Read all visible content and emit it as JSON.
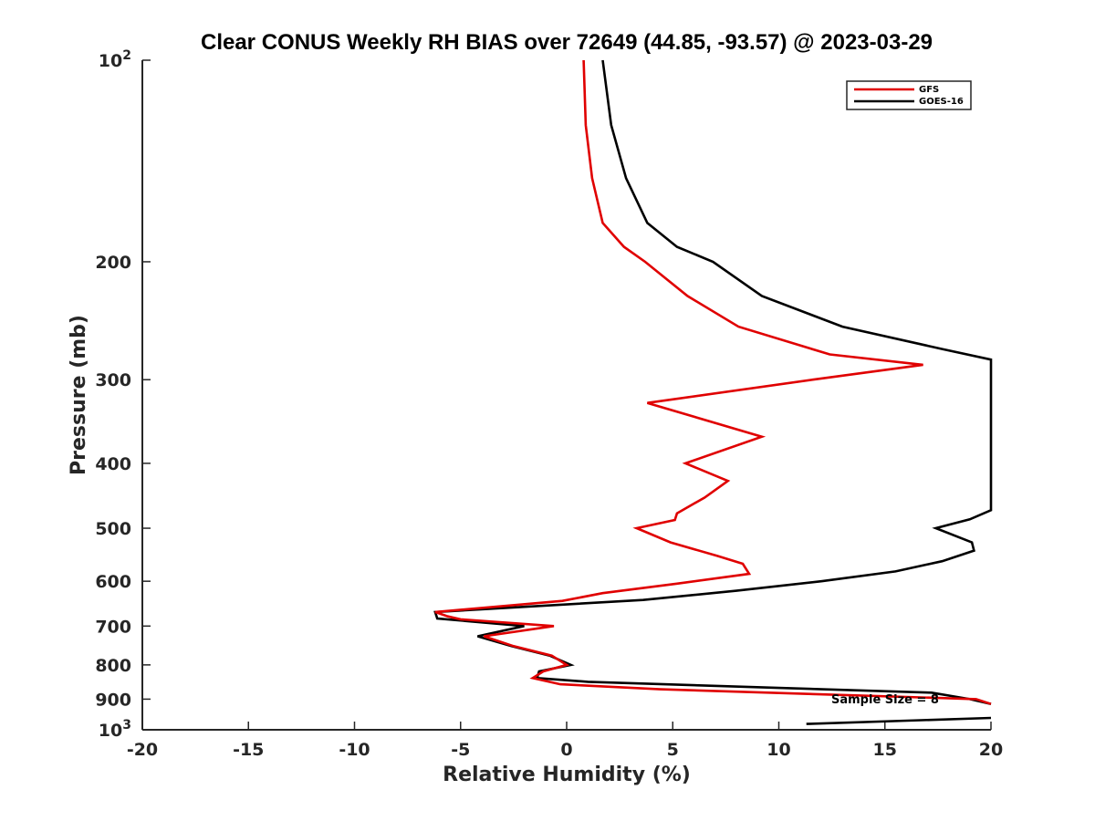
{
  "chart_data": {
    "type": "line",
    "title": "Clear CONUS Weekly RH BIAS over 72649 (44.85, -93.57) @ 2023-03-29",
    "xlabel": "Relative Humidity (%)",
    "ylabel": "Pressure (mb)",
    "xlim": [
      -20,
      20
    ],
    "ylim": [
      100,
      1000
    ],
    "yscale": "log",
    "y_reversed": true,
    "grid": false,
    "legend_position": "top-right",
    "x_ticks": [
      "-20",
      "-15",
      "-10",
      "-5",
      "0",
      "5",
      "10",
      "15",
      "20"
    ],
    "y_ticks": [
      {
        "value": 100,
        "base": "10",
        "exp": "2"
      },
      {
        "value": 200,
        "label": "200"
      },
      {
        "value": 300,
        "label": "300"
      },
      {
        "value": 400,
        "label": "400"
      },
      {
        "value": 500,
        "label": "500"
      },
      {
        "value": 600,
        "label": "600"
      },
      {
        "value": 700,
        "label": "700"
      },
      {
        "value": 800,
        "label": "800"
      },
      {
        "value": 900,
        "label": "900"
      },
      {
        "value": 1000,
        "base": "10",
        "exp": "3"
      }
    ],
    "annotation": "Sample Size = 8",
    "series": [
      {
        "name": "GFS",
        "color": "#e00000",
        "points": [
          [
            0.8,
            100
          ],
          [
            0.9,
            125
          ],
          [
            1.2,
            150
          ],
          [
            1.7,
            175
          ],
          [
            2.7,
            190
          ],
          [
            3.7,
            200
          ],
          [
            5.7,
            225
          ],
          [
            8.1,
            250
          ],
          [
            12.4,
            275
          ],
          [
            16.8,
            285
          ],
          [
            11.6,
            300
          ],
          [
            3.8,
            325
          ],
          [
            9.2,
            365
          ],
          [
            5.6,
            400
          ],
          [
            7.6,
            425
          ],
          [
            6.5,
            450
          ],
          [
            5.2,
            475
          ],
          [
            5.1,
            486
          ],
          [
            3.3,
            500
          ],
          [
            4.9,
            525
          ],
          [
            7.1,
            550
          ],
          [
            8.3,
            565
          ],
          [
            8.6,
            585
          ],
          [
            5.2,
            605
          ],
          [
            1.7,
            625
          ],
          [
            -0.2,
            642
          ],
          [
            -6.2,
            667
          ],
          [
            -5.6,
            677
          ],
          [
            -5.0,
            684
          ],
          [
            -0.6,
            700
          ],
          [
            -3.9,
            725
          ],
          [
            -2.5,
            750
          ],
          [
            -0.7,
            775
          ],
          [
            0.0,
            800
          ],
          [
            -1.1,
            818
          ],
          [
            -1.6,
            837
          ],
          [
            -0.3,
            855
          ],
          [
            4.4,
            870
          ],
          [
            19.3,
            900
          ],
          [
            20.0,
            915
          ]
        ]
      },
      {
        "name": "GOES-16",
        "color": "#000000",
        "points": [
          [
            1.7,
            100
          ],
          [
            2.1,
            125
          ],
          [
            2.8,
            150
          ],
          [
            3.8,
            175
          ],
          [
            5.2,
            190
          ],
          [
            6.9,
            200
          ],
          [
            9.2,
            225
          ],
          [
            13.0,
            250
          ],
          [
            17.7,
            270
          ],
          [
            20.0,
            280
          ],
          [
            20.0,
            470
          ],
          [
            19.0,
            485
          ],
          [
            17.4,
            500
          ],
          [
            19.1,
            525
          ],
          [
            19.2,
            540
          ],
          [
            17.7,
            560
          ],
          [
            15.5,
            580
          ],
          [
            12.0,
            600
          ],
          [
            8.0,
            620
          ],
          [
            3.6,
            640
          ],
          [
            -6.2,
            667
          ],
          [
            -6.1,
            682
          ],
          [
            -2.0,
            700
          ],
          [
            -4.2,
            725
          ],
          [
            -2.6,
            750
          ],
          [
            -0.8,
            775
          ],
          [
            0.2,
            800
          ],
          [
            -1.3,
            818
          ],
          [
            -1.4,
            837
          ],
          [
            1.0,
            848
          ],
          [
            10.0,
            866
          ],
          [
            17.2,
            880
          ],
          [
            19.0,
            900
          ],
          [
            20.0,
            915
          ]
        ],
        "extra_segment": [
          [
            11.3,
            980
          ],
          [
            20.0,
            960
          ]
        ]
      }
    ]
  }
}
